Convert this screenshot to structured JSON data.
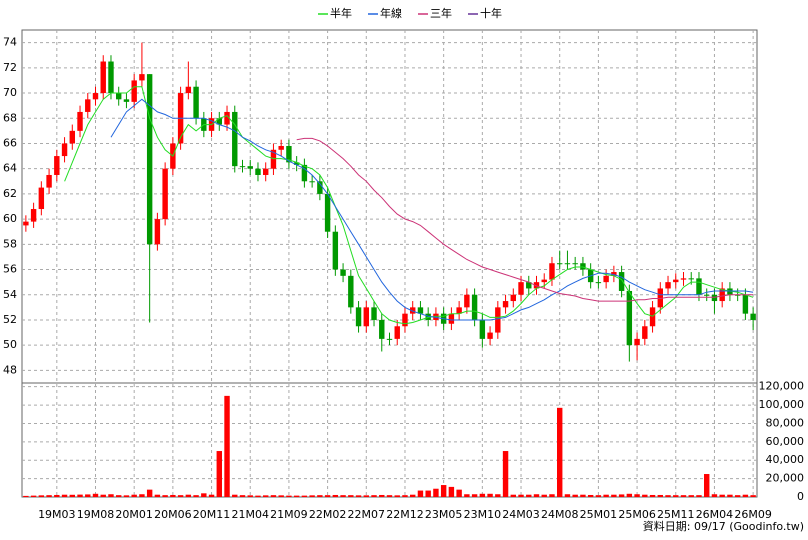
{
  "chart_data": {
    "type": "candlestick",
    "categories": [
      null,
      null,
      null,
      null,
      "19M03",
      null,
      null,
      null,
      null,
      "19M08",
      null,
      null,
      null,
      null,
      "20M01",
      null,
      null,
      null,
      null,
      "20M06",
      null,
      null,
      null,
      null,
      "20M11",
      null,
      null,
      null,
      null,
      "21M04",
      null,
      null,
      null,
      null,
      "21M09",
      null,
      null,
      null,
      null,
      "22M02",
      null,
      null,
      null,
      null,
      "22M07",
      null,
      null,
      null,
      null,
      "22M12",
      null,
      null,
      null,
      null,
      "23M05",
      null,
      null,
      null,
      null,
      "23M10",
      null,
      null,
      null,
      null,
      "24M03",
      null,
      null,
      null,
      null,
      "24M08",
      null,
      null,
      null,
      null,
      "25M01",
      null,
      null,
      null,
      null,
      "25M06",
      null,
      null,
      null,
      null,
      "25M11",
      null,
      null,
      null,
      null,
      "26M04",
      null,
      null,
      null,
      null,
      "26M09"
    ],
    "open": [
      59.5,
      59.8,
      60.8,
      62.5,
      63.5,
      65,
      66,
      67,
      68.5,
      69.5,
      70,
      72.5,
      70,
      69.5,
      69.3,
      71,
      71.5,
      58,
      60,
      64,
      66,
      70,
      70.5,
      68,
      67,
      68,
      67.5,
      68.5,
      64.2,
      64.2,
      64,
      63.5,
      64,
      65.5,
      65.8,
      64.5,
      64.3,
      63,
      63,
      62,
      59,
      56,
      55.5,
      53,
      51.5,
      53,
      52,
      50.5,
      50.5,
      51.5,
      52.5,
      53,
      52.5,
      52,
      52.5,
      51.7,
      52.5,
      53,
      54,
      52,
      50.5,
      51,
      53,
      53.5,
      54,
      55,
      54.5,
      55,
      55.2,
      56.5,
      56.5,
      56.5,
      56.5,
      56,
      55,
      55,
      55.5,
      55.8,
      54.3,
      50,
      50.5,
      51.5,
      53,
      54.5,
      55,
      55.2,
      55.3,
      55.3,
      54,
      54,
      53.5,
      54.5,
      54,
      54,
      52.5
    ],
    "high": [
      60.3,
      61.3,
      63,
      64,
      65.5,
      66.5,
      67.5,
      69,
      70,
      70.5,
      73,
      73,
      70.5,
      70,
      71.5,
      74,
      71.5,
      60.5,
      64.5,
      66.5,
      70.5,
      72.5,
      71,
      68.5,
      68.5,
      68.5,
      69,
      69,
      64.7,
      64.7,
      64.5,
      64.5,
      66,
      66.3,
      66.3,
      65,
      64.8,
      63.5,
      63.5,
      62.5,
      59.5,
      56.5,
      56,
      53.5,
      53.5,
      53.5,
      52.5,
      51,
      52,
      53,
      53.5,
      53.5,
      53,
      53,
      53,
      53,
      53.5,
      54.5,
      54.5,
      52.5,
      51.5,
      53.5,
      54,
      54.5,
      55.5,
      55.5,
      55.5,
      55.7,
      57,
      57.5,
      57.5,
      57,
      57,
      56.5,
      55.5,
      56,
      56.3,
      56.3,
      54.8,
      51,
      52,
      53.5,
      55,
      55.5,
      55.7,
      55.8,
      55.8,
      55.8,
      54.5,
      54.5,
      55,
      55,
      54.5,
      54.5,
      53
    ],
    "low": [
      59,
      59.3,
      60.3,
      62,
      63,
      64.5,
      65.5,
      66.5,
      68,
      69,
      69.5,
      69.5,
      69,
      68.8,
      68.8,
      70.5,
      51.8,
      57.5,
      59.5,
      63.5,
      65.5,
      69.5,
      67.5,
      66.5,
      66.5,
      67,
      67,
      63.7,
      63.7,
      63.5,
      63,
      63,
      63.5,
      65,
      64,
      63.8,
      62.5,
      62.5,
      61.5,
      58.5,
      55.5,
      55,
      52.5,
      51,
      51,
      51.5,
      49.5,
      50,
      50,
      51,
      52,
      52,
      51.5,
      51.5,
      51.2,
      51.2,
      52,
      52.5,
      51.5,
      49.8,
      50,
      50.5,
      52.5,
      53,
      53.5,
      54,
      54,
      54.5,
      54.7,
      56,
      56,
      56,
      55.5,
      54.5,
      54.5,
      54.5,
      55,
      53.8,
      48.7,
      48.8,
      50,
      51,
      52.5,
      54,
      54.5,
      54.7,
      54.8,
      53.5,
      53.5,
      52.5,
      53,
      53.5,
      53.5,
      52,
      51.2
    ],
    "close": [
      59.8,
      60.8,
      62.5,
      63.5,
      65,
      66,
      67,
      68.5,
      69.5,
      70,
      72.5,
      70,
      69.5,
      69.3,
      71,
      71.5,
      58,
      60,
      64,
      66,
      70,
      70.5,
      68,
      67,
      68,
      67.5,
      68.5,
      64.2,
      64.2,
      64,
      63.5,
      64,
      65.5,
      65.8,
      64.5,
      64.3,
      63,
      63,
      62,
      59,
      56,
      55.5,
      53,
      51.5,
      53,
      52,
      50.5,
      50.5,
      51.5,
      52.5,
      53,
      52.5,
      52,
      52.5,
      51.7,
      52.5,
      53,
      54,
      52,
      50.5,
      51,
      53,
      53.5,
      54,
      55,
      54.5,
      55,
      55.2,
      56.5,
      56.5,
      56.5,
      56.5,
      56,
      55,
      55,
      55.5,
      55.8,
      54.3,
      50,
      50.5,
      51.5,
      53,
      54.5,
      55,
      55.2,
      55.3,
      55.3,
      54,
      54,
      53.5,
      54.5,
      54,
      54,
      52.5,
      52
    ],
    "up_color": "#ff0000",
    "down_color": "#009900",
    "ylim": [
      47,
      75
    ],
    "yticks": [
      48,
      50,
      52,
      54,
      56,
      58,
      60,
      62,
      64,
      66,
      68,
      70,
      72,
      74
    ],
    "grid": true,
    "series": [
      {
        "name": "半年",
        "color": "#22dd22",
        "values": [
          null,
          null,
          null,
          null,
          null,
          63,
          64.5,
          66,
          67.5,
          68.5,
          69.5,
          70,
          70,
          70,
          70.5,
          70.5,
          68,
          66.5,
          65.5,
          65,
          66.5,
          67.5,
          67,
          67.5,
          67.5,
          68,
          68.2,
          67.5,
          66.5,
          66,
          65.5,
          65,
          64.8,
          64.8,
          64.7,
          64.5,
          64.2,
          64,
          63.5,
          62.5,
          61,
          59.5,
          57.5,
          55.5,
          54.5,
          53.5,
          52.5,
          52,
          51.8,
          51.7,
          51.8,
          52,
          52.2,
          52.3,
          52.3,
          52.5,
          52.5,
          52.7,
          52.7,
          52.5,
          52.2,
          52.2,
          52.3,
          52.7,
          53.3,
          54,
          54.5,
          54.7,
          55.2,
          55.6,
          56,
          56.2,
          56.2,
          56,
          55.8,
          55.6,
          55.5,
          55.2,
          54.2,
          53.3,
          52.5,
          52.3,
          52.8,
          53.3,
          53.8,
          54.6,
          55,
          55,
          54.8,
          54.6,
          54.4,
          54.3,
          54.2,
          54,
          53.8
        ]
      },
      {
        "name": "年線",
        "color": "#2266dd",
        "values": [
          null,
          null,
          null,
          null,
          null,
          null,
          null,
          null,
          null,
          null,
          null,
          66.5,
          67.5,
          68.5,
          69,
          69.5,
          69,
          68.5,
          68.3,
          68,
          68,
          68,
          68,
          68,
          67.8,
          67.5,
          67.3,
          67,
          66.5,
          66.2,
          65.8,
          65.5,
          65.3,
          65,
          64.6,
          64.3,
          64,
          63.5,
          62.8,
          62,
          61,
          60,
          59,
          58,
          57,
          56,
          55,
          54.2,
          53.5,
          53,
          52.7,
          52.5,
          52.3,
          52.2,
          52.1,
          52,
          52,
          52,
          52,
          52,
          52,
          52.1,
          52.2,
          52.5,
          52.8,
          53,
          53.3,
          53.6,
          54,
          54.3,
          54.7,
          55,
          55.3,
          55.5,
          55.7,
          55.7,
          55.6,
          55.4,
          55,
          54.7,
          54.4,
          54.2,
          54,
          54,
          54,
          54,
          54,
          54,
          54.2,
          54.3,
          54.3,
          54.3,
          54.3,
          54.3,
          54.2
        ]
      },
      {
        "name": "三年",
        "color": "#cc3377",
        "values": [
          null,
          null,
          null,
          null,
          null,
          null,
          null,
          null,
          null,
          null,
          null,
          null,
          null,
          null,
          null,
          null,
          null,
          null,
          null,
          null,
          null,
          null,
          null,
          null,
          null,
          null,
          null,
          null,
          null,
          null,
          null,
          null,
          null,
          null,
          null,
          66.3,
          66.4,
          66.4,
          66.2,
          65.8,
          65.3,
          64.8,
          64.2,
          63.5,
          63,
          62.3,
          61.7,
          61,
          60.4,
          60,
          59.8,
          59.5,
          59,
          58.5,
          58,
          57.6,
          57.2,
          56.8,
          56.5,
          56.2,
          56,
          55.8,
          55.6,
          55.4,
          55.2,
          55,
          54.7,
          54.5,
          54.3,
          54.1,
          54,
          53.9,
          53.7,
          53.6,
          53.5,
          53.5,
          53.5,
          53.5,
          53.5,
          53.6,
          53.6,
          53.7,
          53.7,
          53.8,
          53.8,
          53.8,
          53.8,
          53.8,
          53.8,
          53.8,
          53.9,
          54,
          54,
          54,
          54
        ]
      },
      {
        "name": "十年",
        "color": "#663399"
      }
    ],
    "volume": {
      "color": "#ff0000",
      "values": [
        1200,
        1500,
        1800,
        2000,
        2200,
        2500,
        2400,
        2600,
        2800,
        3500,
        2500,
        3000,
        2000,
        1800,
        2500,
        3000,
        8000,
        2500,
        2000,
        2200,
        2000,
        2500,
        2000,
        4000,
        2500,
        50000,
        110000,
        2500,
        2000,
        1800,
        1500,
        1800,
        2000,
        1800,
        1500,
        1500,
        1500,
        1800,
        2000,
        2000,
        2200,
        2000,
        2000,
        1800,
        1800,
        2000,
        2200,
        2000,
        1800,
        2000,
        2500,
        7000,
        7000,
        9000,
        13000,
        11000,
        8000,
        3000,
        3000,
        3500,
        3500,
        3000,
        50000,
        2500,
        2500,
        2500,
        3000,
        2500,
        3000,
        97000,
        3000,
        2500,
        2500,
        2200,
        2000,
        2500,
        2500,
        2800,
        3500,
        3000,
        2500,
        2200,
        2200,
        2000,
        2000,
        2000,
        2000,
        2000,
        25000,
        3000,
        2500,
        2500,
        2000,
        2500,
        2000
      ],
      "ylim": [
        0,
        124000
      ],
      "yticks": [
        0,
        {
          "value": 20000,
          "label": "20,000"
        },
        {
          "value": 40000,
          "label": "40,000"
        },
        {
          "value": 60000,
          "label": "60,000"
        },
        {
          "value": 80000,
          "label": "80,000"
        },
        {
          "value": 100000,
          "label": "100,000"
        },
        {
          "value": 120000,
          "label": "120,000"
        }
      ]
    },
    "footnote": "資料日期: 09/17 (Goodinfo.tw)"
  }
}
